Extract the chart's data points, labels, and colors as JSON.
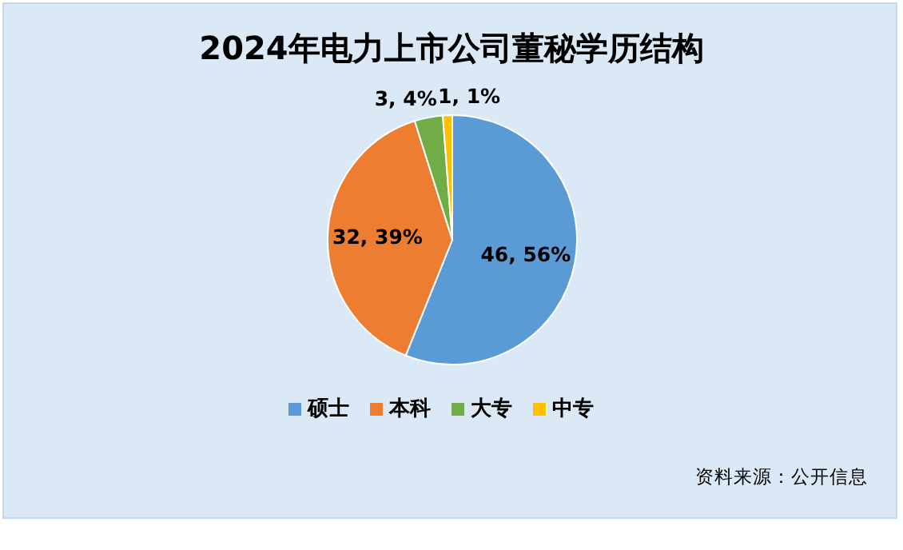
{
  "chart_data": {
    "type": "pie",
    "title": "2024年电力上市公司董秘学历结构",
    "categories": [
      "硕士",
      "本科",
      "大专",
      "中专"
    ],
    "values": [
      46,
      32,
      3,
      1
    ],
    "colors": [
      "#5b9bd5",
      "#ed7d31",
      "#70ad47",
      "#ffc000"
    ],
    "value_labels": [
      "46, 56%",
      "32, 39%",
      "3, 4%",
      "1, 1%"
    ],
    "legend": "bottom",
    "annotations": [
      "资料来源：公开信息"
    ]
  }
}
